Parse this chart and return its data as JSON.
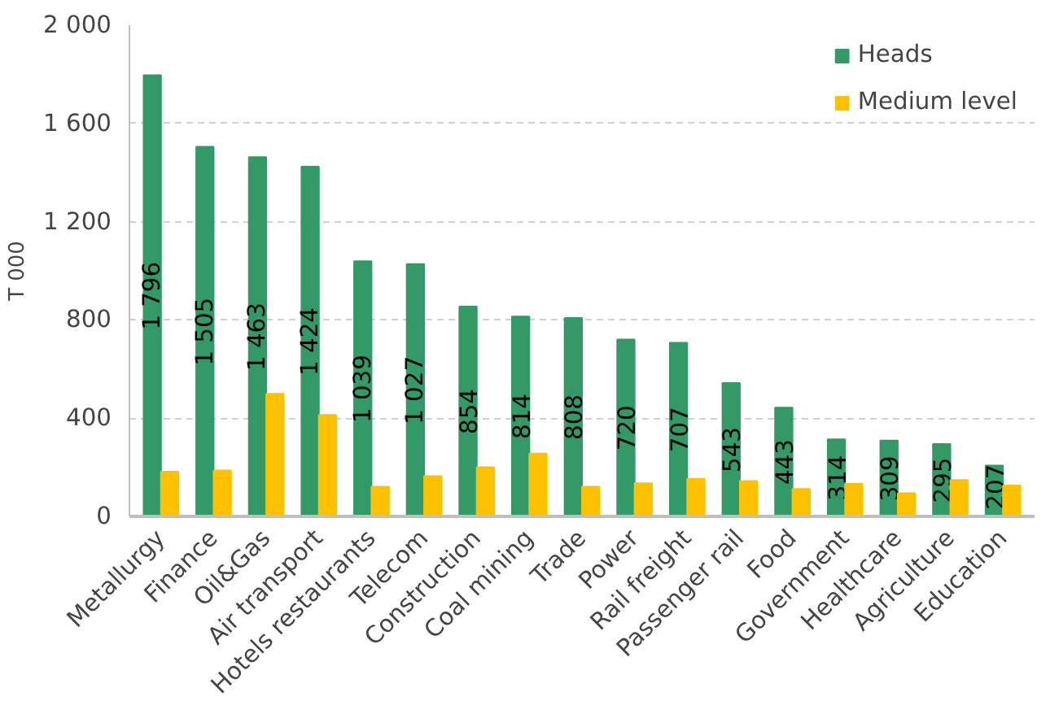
{
  "chart_data": {
    "type": "bar",
    "ylabel": "T 000",
    "categories": [
      "Metallurgy",
      "Finance",
      "Oil&Gas",
      "Air transport",
      "Hotels restaurants",
      "Telecom",
      "Construction",
      "Coal mining",
      "Trade",
      "Power",
      "Rail freight",
      "Passenger rail",
      "Food",
      "Government",
      "Healthcare",
      "Agriculture",
      "Education"
    ],
    "series": [
      {
        "name": "Heads",
        "color": "#339966",
        "values": [
          1796,
          1505,
          1463,
          1424,
          1039,
          1027,
          854,
          814,
          808,
          720,
          707,
          543,
          443,
          314,
          309,
          295,
          207
        ],
        "value_labels": [
          "1 796",
          "1 505",
          "1 463",
          "1 424",
          "1 039",
          "1 027",
          "854",
          "814",
          "808",
          "720",
          "707",
          "543",
          "443",
          "314",
          "309",
          "295",
          "207"
        ]
      },
      {
        "name": "Medium level",
        "color": "#ffc000",
        "values": [
          182,
          187,
          499,
          413,
          121,
          164,
          200,
          256,
          121,
          135,
          153,
          144,
          112,
          133,
          94,
          148,
          126
        ]
      }
    ],
    "ylim": [
      0,
      2000
    ],
    "yticks": [
      0,
      400,
      800,
      {
        "value": 1200,
        "label": "1 200"
      },
      {
        "value": 1600,
        "label": "1 600"
      },
      {
        "value": 2000,
        "label": "2 000"
      }
    ],
    "grid": "y",
    "legend": "top right"
  }
}
